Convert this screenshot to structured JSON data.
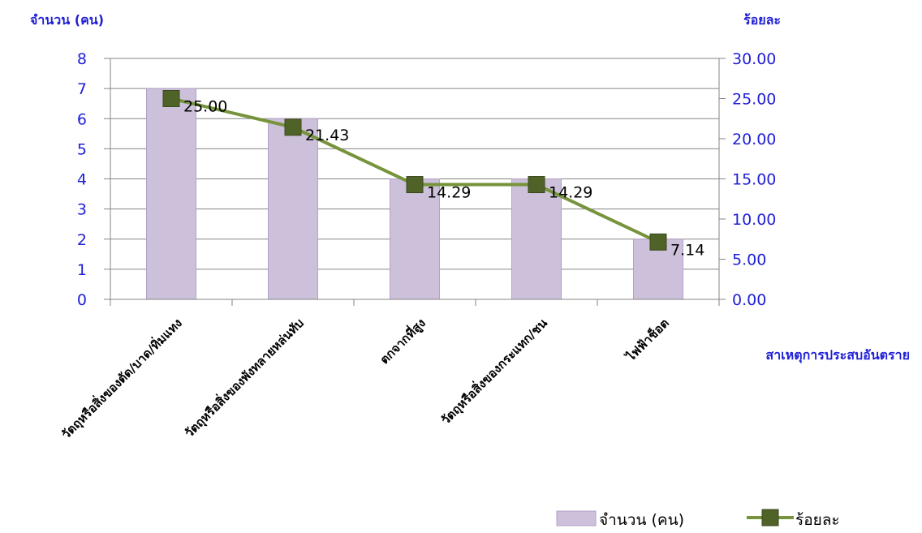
{
  "chart_data": {
    "type": "bar",
    "categories": [
      "วัตถุหรือสิ่งของตัด/บาด/ทิ่มแทง",
      "วัตถุหรือสิ่งของพังทลายหล่นทับ",
      "ตกจากที่สูง",
      "วัตถุหรือสิ่งของกระแทก/ชน",
      "ไฟฟ้าช็อต"
    ],
    "series": [
      {
        "name": "จำนวน (คน)",
        "type": "bar",
        "axis": "left",
        "values": [
          7,
          6,
          4,
          4,
          2
        ],
        "color": "#ccc0da"
      },
      {
        "name": "ร้อยละ",
        "type": "line",
        "axis": "right",
        "values": [
          25.0,
          21.43,
          14.29,
          14.29,
          7.14
        ],
        "labels": [
          "25.00",
          "21.43",
          "14.29",
          "14.29",
          "7.14"
        ],
        "color": "#77933c",
        "marker_color": "#4f6228"
      }
    ],
    "ylabel": "จำนวน (คน)",
    "y2label": "ร้อยละ",
    "xlabel": "สาเหตุการประสบอันตราย",
    "ylim": [
      0,
      8
    ],
    "y2lim": [
      0,
      30
    ],
    "yticks": [
      "0",
      "1",
      "2",
      "3",
      "4",
      "5",
      "6",
      "7",
      "8"
    ],
    "y2ticks": [
      "0.00",
      "5.00",
      "10.00",
      "15.00",
      "20.00",
      "25.00",
      "30.00"
    ],
    "grid": true,
    "legend_position": "bottom-right",
    "colors": {
      "axis_text": "#1f1fd6",
      "grid": "#868686"
    }
  }
}
